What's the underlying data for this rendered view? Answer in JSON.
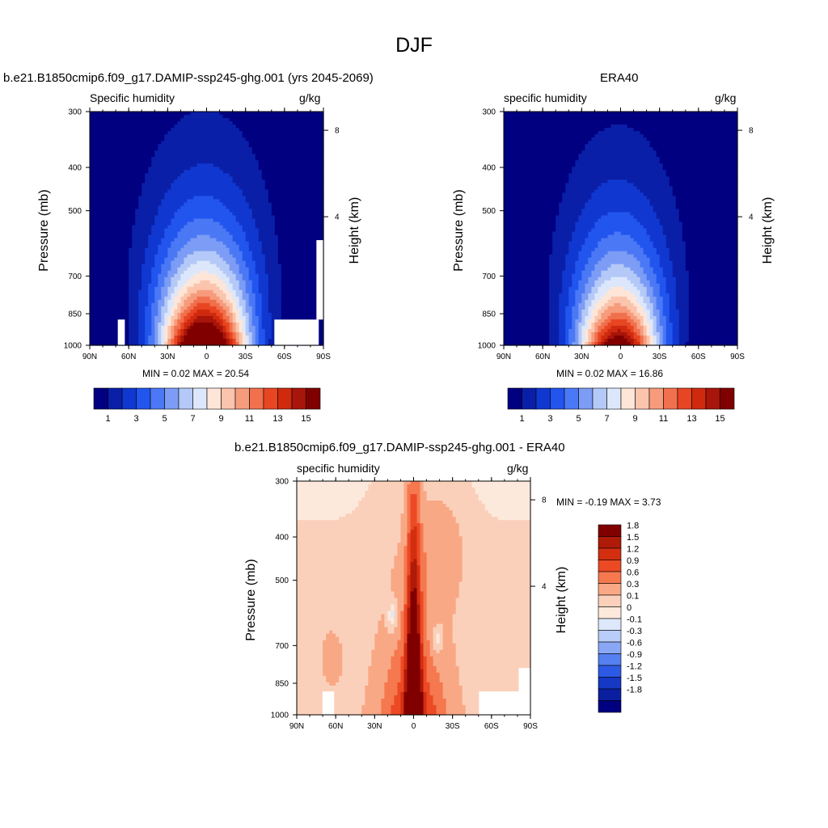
{
  "main_title": "DJF",
  "panels": {
    "p1": {
      "title": "b.e21.B1850cmip6.f09_g17.DAMIP-ssp245-ghg.001 (yrs 2045-2069)",
      "left_label": "Specific humidity",
      "right_label": "g/kg",
      "stats": "MIN =   0.02  MAX =  20.54"
    },
    "p2": {
      "title": "ERA40",
      "left_label": "specific humidity",
      "right_label": "g/kg",
      "stats": "MIN =   0.02  MAX =  16.86"
    },
    "p3": {
      "title": "b.e21.B1850cmip6.f09_g17.DAMIP-ssp245-ghg.001 - ERA40",
      "left_label": "specific humidity",
      "right_label": "g/kg",
      "stats": "MIN =  -0.19  MAX =   3.73"
    }
  },
  "axes": {
    "ylabel": "Pressure (mb)",
    "ylabel_right": "Height (km)",
    "y_ticks": [
      "300",
      "400",
      "500",
      "700",
      "850",
      "1000"
    ],
    "x_ticks": [
      "90N",
      "60N",
      "30N",
      "0",
      "30S",
      "60S",
      "90S"
    ],
    "height_ticks": [
      "8",
      "4"
    ]
  },
  "colorbars": {
    "abs_labels": [
      "1",
      "3",
      "5",
      "7",
      "9",
      "11",
      "13",
      "15"
    ],
    "abs_colors": [
      "#000080",
      "#0a1fa8",
      "#1038d0",
      "#2255ee",
      "#4b78f5",
      "#7c9cf5",
      "#b4c9f7",
      "#dde7fb",
      "#fde6d8",
      "#fbc4ac",
      "#f69c7c",
      "#f1704d",
      "#e84623",
      "#d02a0e",
      "#a8150a",
      "#800000"
    ],
    "diff_labels": [
      "1.8",
      "1.5",
      "1.2",
      "0.9",
      "0.6",
      "0.3",
      "0.1",
      "0",
      "-0.1",
      "-0.3",
      "-0.6",
      "-0.9",
      "-1.2",
      "-1.5",
      "-1.8"
    ],
    "diff_colors": [
      "#800000",
      "#b01a08",
      "#d42e10",
      "#ec4a25",
      "#f5784f",
      "#f9a885",
      "#fbd0bb",
      "#fde9dc",
      "#dde8fb",
      "#b8cdf7",
      "#8aa7f5",
      "#5580f0",
      "#2d5ae5",
      "#1538c5",
      "#0a1fa0",
      "#000080"
    ]
  },
  "chart_data": [
    {
      "type": "heatmap",
      "title": "b.e21.B1850cmip6.f09_g17.DAMIP-ssp245-ghg.001 (yrs 2045-2069)",
      "variable": "Specific humidity",
      "units": "g/kg",
      "xlabel": "",
      "ylabel": "Pressure (mb)",
      "ylabel_right": "Height (km)",
      "x_range": [
        "90N",
        "90S"
      ],
      "y_range": [
        1000,
        300
      ],
      "y_scale": "log",
      "min": 0.02,
      "max": 20.54,
      "contour_levels": [
        1,
        2,
        3,
        4,
        5,
        6,
        7,
        8,
        9,
        10,
        11,
        12,
        13,
        14,
        15
      ],
      "peak_location": {
        "lat": "5S",
        "pressure_mb": 1000
      },
      "axis_aligned_max_height_of_1gkg_contour_mb": 340
    },
    {
      "type": "heatmap",
      "title": "ERA40",
      "variable": "specific humidity",
      "units": "g/kg",
      "xlabel": "",
      "ylabel": "Pressure (mb)",
      "ylabel_right": "Height (km)",
      "x_range": [
        "90N",
        "90S"
      ],
      "y_range": [
        1000,
        300
      ],
      "y_scale": "log",
      "min": 0.02,
      "max": 16.86,
      "contour_levels": [
        1,
        2,
        3,
        4,
        5,
        6,
        7,
        8,
        9,
        10,
        11,
        12,
        13,
        14,
        15
      ],
      "peak_location": {
        "lat": "5S",
        "pressure_mb": 1000
      }
    },
    {
      "type": "heatmap",
      "title": "b.e21.B1850cmip6.f09_g17.DAMIP-ssp245-ghg.001 - ERA40",
      "variable": "specific humidity",
      "units": "g/kg",
      "xlabel": "",
      "ylabel": "Pressure (mb)",
      "ylabel_right": "Height (km)",
      "x_range": [
        "90N",
        "90S"
      ],
      "y_range": [
        1000,
        300
      ],
      "y_scale": "log",
      "min": -0.19,
      "max": 3.73,
      "contour_levels": [
        -1.8,
        -1.5,
        -1.2,
        -0.9,
        -0.6,
        -0.3,
        -0.1,
        0,
        0.1,
        0.3,
        0.6,
        0.9,
        1.2,
        1.5,
        1.8
      ],
      "peak_location": {
        "lat": "0",
        "pressure_mb": 1000
      }
    }
  ]
}
